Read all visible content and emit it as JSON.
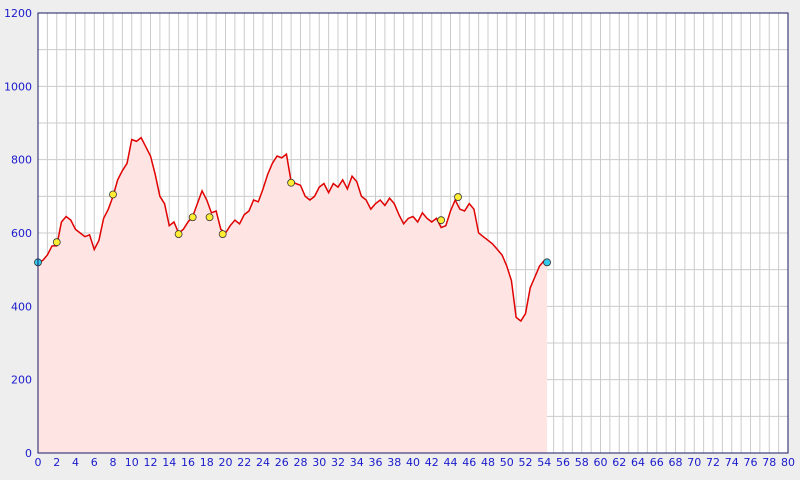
{
  "chart_data": {
    "type": "area",
    "xlim": [
      0,
      80
    ],
    "ylim": [
      0,
      1200
    ],
    "xticks": [
      0,
      2,
      4,
      6,
      8,
      10,
      12,
      14,
      16,
      18,
      20,
      22,
      24,
      26,
      28,
      30,
      32,
      34,
      36,
      38,
      40,
      42,
      44,
      46,
      48,
      50,
      52,
      54,
      56,
      58,
      60,
      62,
      64,
      66,
      68,
      70,
      72,
      74,
      76,
      78,
      80
    ],
    "yticks": [
      0,
      200,
      400,
      600,
      800,
      1000,
      1200
    ],
    "x_minor_ticks": [
      1,
      3,
      5,
      7,
      9,
      11,
      13,
      15,
      17,
      19,
      21,
      23,
      25,
      27,
      29,
      31,
      33,
      35,
      37,
      39,
      41,
      43,
      45,
      47,
      49,
      51,
      53,
      55,
      57,
      59,
      61,
      63,
      65,
      67,
      69,
      71,
      73,
      75,
      77,
      79
    ],
    "y_minor_ticks": [
      100,
      300,
      500,
      700,
      900,
      1100
    ],
    "grid": true,
    "series": [
      {
        "color": "#e00000",
        "fill": "#ffe4e4",
        "x": [
          0,
          0.5,
          1,
          1.5,
          2,
          2.5,
          3,
          3.5,
          4,
          4.5,
          5,
          5.5,
          6,
          6.5,
          7,
          7.5,
          8,
          8.5,
          9,
          9.5,
          10,
          10.5,
          11,
          11.5,
          12,
          12.5,
          13,
          13.5,
          14,
          14.5,
          15,
          15.5,
          16,
          16.5,
          17,
          17.5,
          18,
          18.5,
          19,
          19.5,
          20,
          20.5,
          21,
          21.5,
          22,
          22.5,
          23,
          23.5,
          24,
          24.5,
          25,
          25.5,
          26,
          26.5,
          27,
          27.5,
          28,
          28.5,
          29,
          29.5,
          30,
          30.5,
          31,
          31.5,
          32,
          32.5,
          33,
          33.5,
          34,
          34.5,
          35,
          35.5,
          36,
          36.5,
          37,
          37.5,
          38,
          38.5,
          39,
          39.5,
          40,
          40.5,
          41,
          41.5,
          42,
          42.5,
          43,
          43.5,
          44,
          44.5,
          45,
          45.5,
          46,
          46.5,
          47,
          47.5,
          48,
          48.5,
          49,
          49.5,
          50,
          50.5,
          51,
          51.5,
          52,
          52.5,
          53,
          53.5,
          54,
          54.3
        ],
        "values": [
          520,
          525,
          540,
          565,
          565,
          630,
          645,
          635,
          610,
          600,
          590,
          595,
          555,
          580,
          640,
          665,
          700,
          745,
          770,
          790,
          855,
          850,
          860,
          835,
          810,
          760,
          700,
          680,
          620,
          630,
          600,
          610,
          630,
          645,
          680,
          715,
          690,
          655,
          660,
          610,
          600,
          620,
          635,
          625,
          650,
          660,
          690,
          685,
          720,
          760,
          790,
          810,
          805,
          815,
          740,
          735,
          730,
          700,
          690,
          700,
          725,
          735,
          710,
          735,
          725,
          745,
          720,
          755,
          740,
          700,
          690,
          665,
          680,
          690,
          675,
          695,
          680,
          650,
          625,
          640,
          645,
          630,
          655,
          640,
          630,
          640,
          615,
          620,
          660,
          690,
          665,
          660,
          680,
          665,
          600,
          590,
          580,
          570,
          555,
          540,
          510,
          470,
          370,
          360,
          380,
          450,
          480,
          510,
          525,
          520
        ]
      }
    ],
    "points": {
      "x": [
        0,
        2,
        8,
        15,
        16.5,
        18.3,
        19.7,
        27,
        43,
        44.8,
        54.3
      ],
      "values": [
        520,
        575,
        705,
        597,
        643,
        643,
        597,
        737,
        635,
        698,
        520
      ],
      "colors": [
        "#33ccee",
        "#ffee33",
        "#ffee33",
        "#ffee33",
        "#ffee33",
        "#ffee33",
        "#ffee33",
        "#ffee33",
        "#ffee33",
        "#ffee33",
        "#33ccee"
      ]
    }
  }
}
